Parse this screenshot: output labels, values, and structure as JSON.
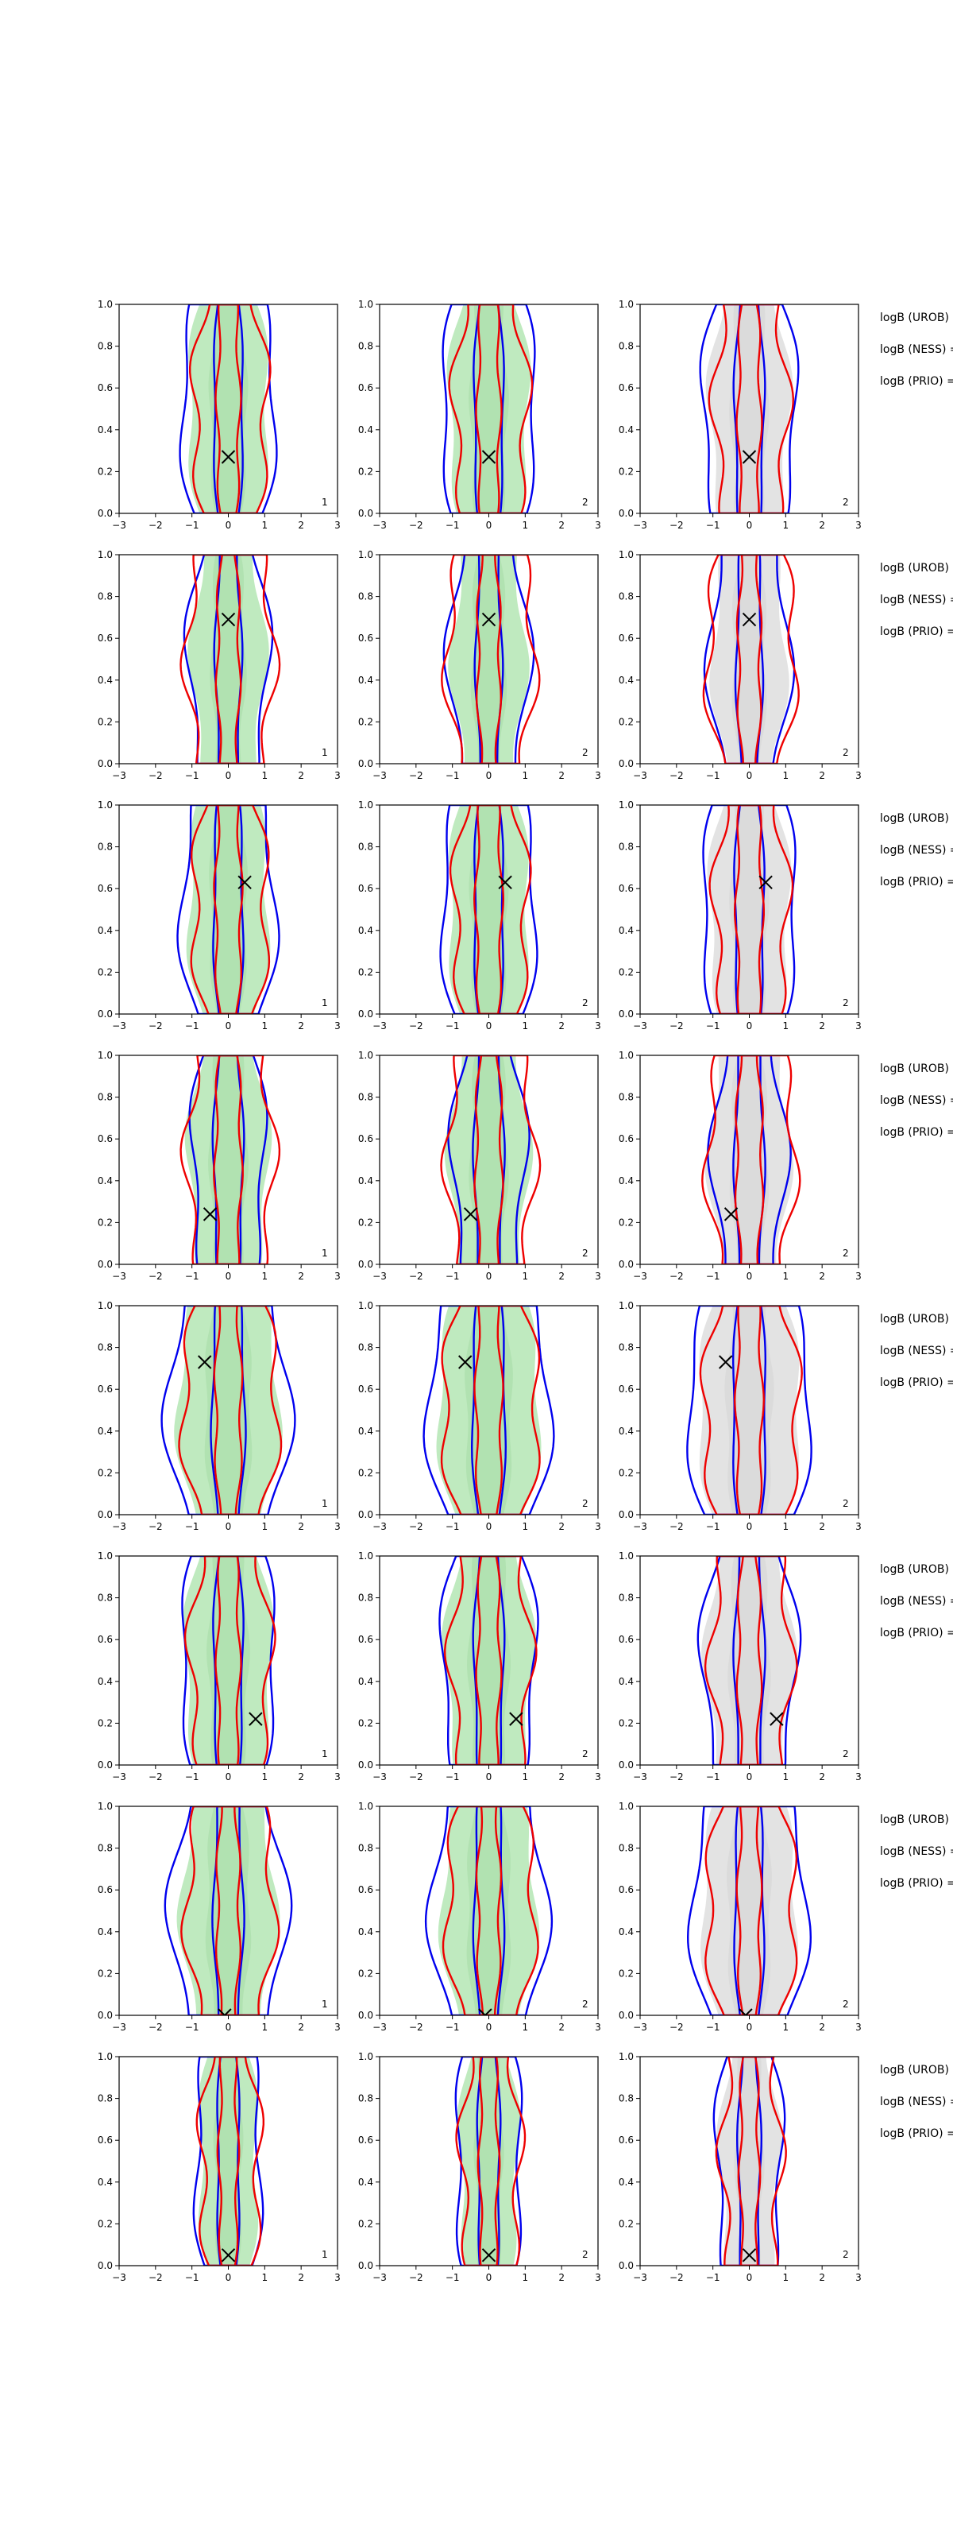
{
  "chart_data": {
    "type": "contour-grid",
    "rows": 8,
    "cols": 3,
    "xlim": [
      -3,
      3
    ],
    "ylim": [
      0,
      1
    ],
    "xticks": [
      "−3",
      "−2",
      "−1",
      "0",
      "1",
      "2",
      "3"
    ],
    "yticks": [
      "0.0",
      "0.2",
      "0.4",
      "0.6",
      "0.8",
      "1.0"
    ],
    "series_colors": {
      "blue": "#0000ee",
      "red": "#ee0000",
      "fill_green": "#bfeabf",
      "fill_gray": "#e3e3e3"
    },
    "legend_labels": [
      "logB (UROB) =",
      "logB (NESS) =",
      "logB (PRIO) ="
    ],
    "column_corner_labels": [
      "1",
      "2",
      "2"
    ],
    "markers": [
      {
        "x": 0.0,
        "y": 0.27
      },
      {
        "x": 0.0,
        "y": 0.69
      },
      {
        "x": 0.45,
        "y": 0.63
      },
      {
        "x": -0.5,
        "y": 0.24
      },
      {
        "x": -0.65,
        "y": 0.73
      },
      {
        "x": 0.75,
        "y": 0.22
      },
      {
        "x": -0.1,
        "y": 0.0
      },
      {
        "x": 0.0,
        "y": 0.05
      }
    ],
    "contour_widths": [
      {
        "blue": [
          1.3,
          0.4
        ],
        "red": [
          1.0,
          0.3
        ],
        "fill": 1.1
      },
      {
        "blue": [
          1.1,
          0.35
        ],
        "red": [
          1.2,
          0.3
        ],
        "fill": 1.0
      },
      {
        "blue": [
          1.3,
          0.4
        ],
        "red": [
          1.0,
          0.35
        ],
        "fill": 1.1
      },
      {
        "blue": [
          1.0,
          0.4
        ],
        "red": [
          1.2,
          0.35
        ],
        "fill": 1.1
      },
      {
        "blue": [
          1.7,
          0.45
        ],
        "red": [
          1.3,
          0.35
        ],
        "fill": 1.4
      },
      {
        "blue": [
          1.3,
          0.4
        ],
        "red": [
          1.1,
          0.3
        ],
        "fill": 1.2
      },
      {
        "blue": [
          1.6,
          0.4
        ],
        "red": [
          1.2,
          0.3
        ],
        "fill": 1.3
      },
      {
        "blue": [
          0.9,
          0.3
        ],
        "red": [
          0.8,
          0.25
        ],
        "fill": 0.8
      }
    ]
  }
}
